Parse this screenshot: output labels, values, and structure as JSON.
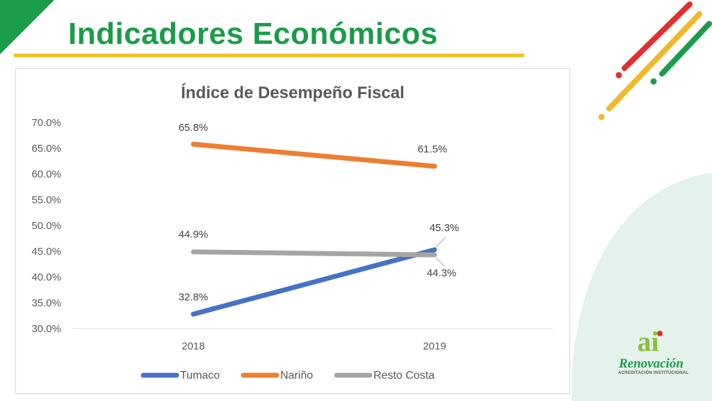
{
  "slide": {
    "title": "Indicadores Económicos",
    "accent_color": "#1a9c48",
    "rule_color": "#f0c21b"
  },
  "logo": {
    "mark": "ai",
    "name": "Renovación",
    "subtitle": "ACREDITACIÓN INSTITUCIONAL"
  },
  "chart_data": {
    "type": "line",
    "title": "Índice de Desempeño Fiscal",
    "xlabel": "",
    "ylabel": "",
    "categories": [
      "2018",
      "2019"
    ],
    "ylim": [
      30.0,
      70.0
    ],
    "yticks": [
      "30.0%",
      "35.0%",
      "40.0%",
      "45.0%",
      "50.0%",
      "55.0%",
      "60.0%",
      "65.0%",
      "70.0%"
    ],
    "grid": false,
    "legend": "bottom",
    "series": [
      {
        "name": "Tumaco",
        "values": [
          32.8,
          45.3
        ],
        "labels": [
          "32.8%",
          "45.3%"
        ],
        "color": "#4472c4"
      },
      {
        "name": "Nariño",
        "values": [
          65.8,
          61.5
        ],
        "labels": [
          "65.8%",
          "61.5%"
        ],
        "color": "#ed7d31"
      },
      {
        "name": "Resto Costa",
        "values": [
          44.9,
          44.3
        ],
        "labels": [
          "44.9%",
          "44.3%"
        ],
        "color": "#a5a5a5"
      }
    ]
  }
}
